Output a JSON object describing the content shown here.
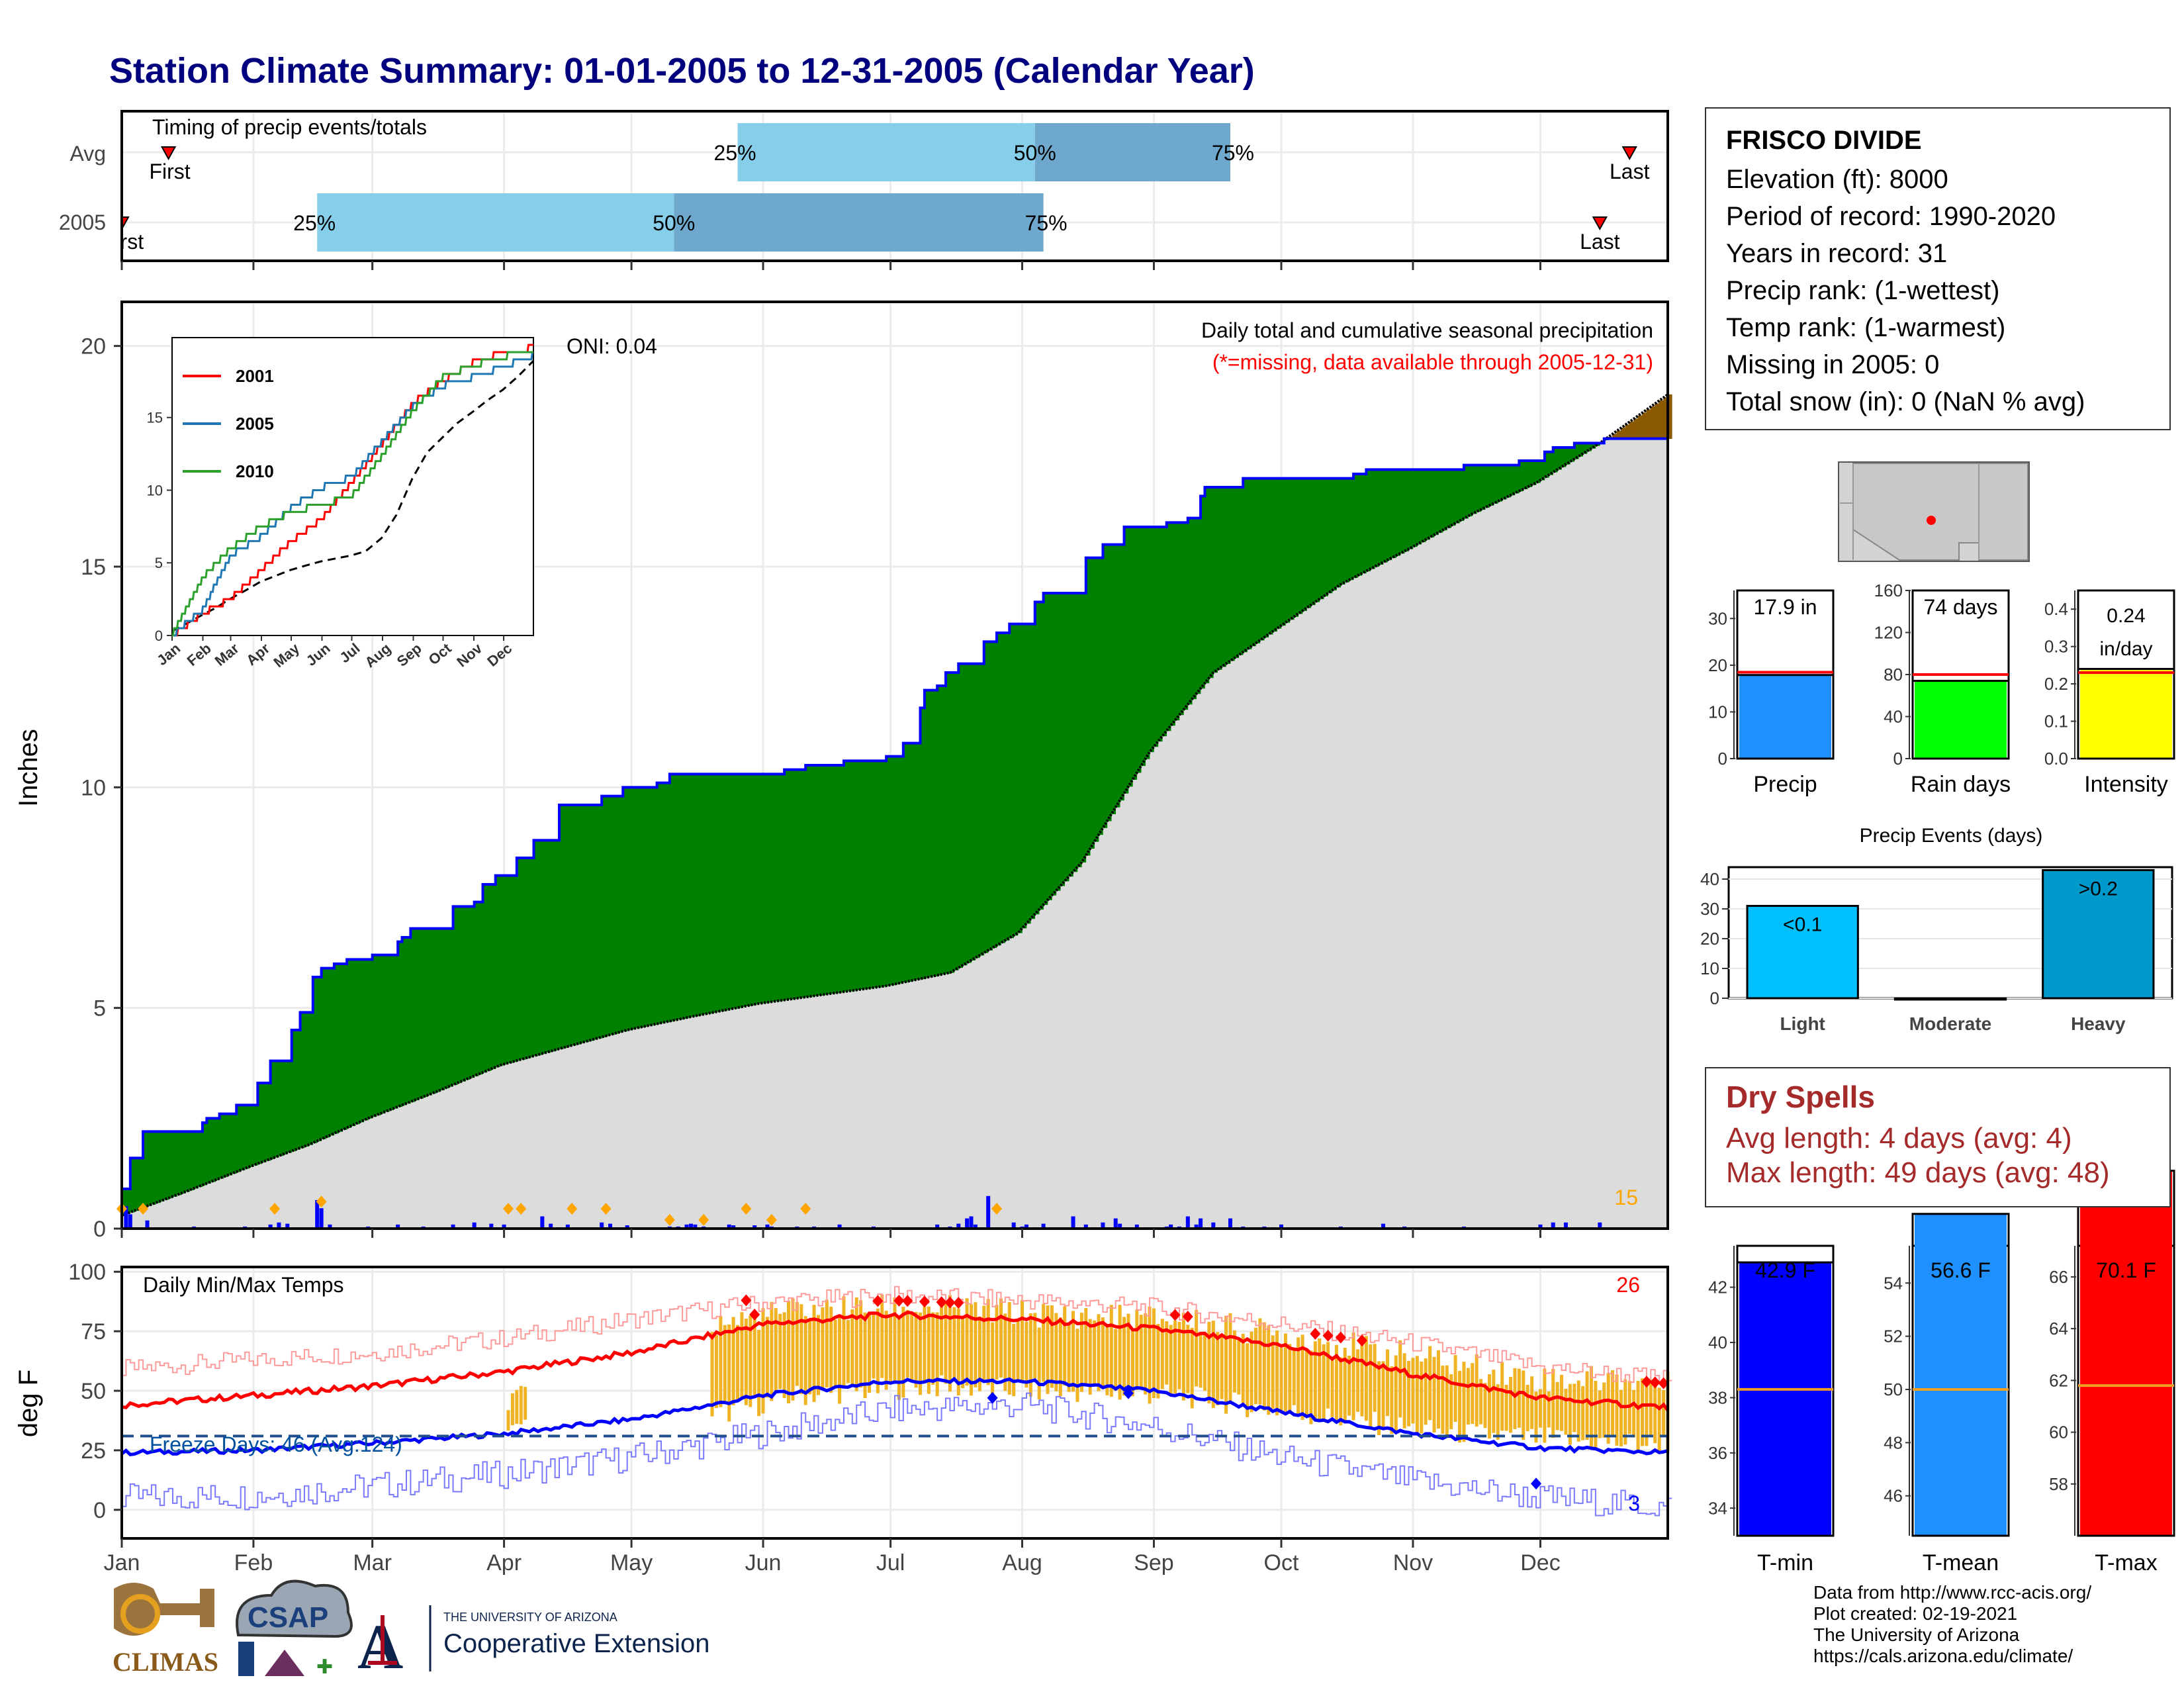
{
  "page_title": "Station Climate Summary: 01-01-2005 to 12-31-2005 (Calendar Year)",
  "colors": {
    "title": "#00007f",
    "wet": "#008000",
    "dry": "#8b5a00",
    "cum_line": "#0000ff",
    "climo_fill": "#dcdcdc",
    "q1": "#87ceeb",
    "q2": "#6fa8cd",
    "tmin": "#0000ff",
    "tmax": "#ff0000",
    "anom": "#f0b323"
  },
  "timing_panel": {
    "title": "Timing of precip events/totals",
    "rows": [
      {
        "label": "Avg",
        "first_label": "First",
        "last_label": "Last",
        "first_day": 12,
        "last_day": 356,
        "q25_day": 146,
        "q50_day": 216,
        "q75_day": 262,
        "q25_label": "25%",
        "q50_label": "50%",
        "q75_label": "75%"
      },
      {
        "label": "2005",
        "first_label": "First",
        "last_label": "Last",
        "first_day": 1,
        "last_day": 349,
        "q25_day": 47,
        "q50_day": 131,
        "q75_day": 218,
        "q25_label": "25%",
        "q50_label": "50%",
        "q75_label": "75%"
      }
    ]
  },
  "precip_panel": {
    "y_label": "Inches",
    "y_ticks": [
      "0",
      "5",
      "10",
      "15",
      "20"
    ],
    "header": "Daily total and cumulative seasonal precipitation",
    "missing_note": "(*=missing, data available through 2005-12-31)",
    "oni": "ONI: 0.04",
    "count_label": "15"
  },
  "inset": {
    "y_ticks": [
      "0",
      "5",
      "10",
      "15"
    ],
    "months": [
      "Jan",
      "Feb",
      "Mar",
      "Apr",
      "May",
      "Jun",
      "Jul",
      "Aug",
      "Sep",
      "Oct",
      "Nov",
      "Dec"
    ],
    "legend": [
      {
        "name": "2001",
        "color": "#ff0000"
      },
      {
        "name": "2005",
        "color": "#1f77b4"
      },
      {
        "name": "2010",
        "color": "#2ca02c"
      }
    ]
  },
  "temp_panel": {
    "y_label": "deg F",
    "title": "Daily Min/Max Temps",
    "y_ticks": [
      "0",
      "25",
      "50",
      "75",
      "100"
    ],
    "freeze_label": "Freeze Days: 46 (Avg:124)",
    "max_count": "26",
    "min_count": "3"
  },
  "months": [
    "Jan",
    "Feb",
    "Mar",
    "Apr",
    "May",
    "Jun",
    "Jul",
    "Aug",
    "Sep",
    "Oct",
    "Nov",
    "Dec"
  ],
  "station": {
    "name": "FRISCO DIVIDE",
    "lines": [
      "Elevation (ft): 8000",
      "Period of record: 1990-2020",
      "Years in record: 31",
      "Precip rank:  (1-wettest)",
      "Temp rank:  (1-warmest)",
      "Missing in 2005: 0",
      "Total snow (in): 0 (NaN % avg)"
    ]
  },
  "mini_bars": [
    {
      "label": "Precip",
      "value": 17.9,
      "avg": 18.5,
      "value_text": "17.9 in",
      "color": "#1e90ff",
      "ymax": 36,
      "ticks": [
        "0",
        "10",
        "20",
        "30"
      ],
      "tickvals": [
        0,
        10,
        20,
        30
      ]
    },
    {
      "label": "Rain days",
      "value": 74,
      "avg": 80,
      "value_text": "74 days",
      "color": "#00ff00",
      "ymax": 160,
      "ticks": [
        "0",
        "40",
        "80",
        "120",
        "160"
      ],
      "tickvals": [
        0,
        40,
        80,
        120,
        160
      ]
    },
    {
      "label": "Intensity",
      "value": 0.24,
      "avg": 0.23,
      "value_text": "0.24 in/day",
      "value_text_lines": [
        "0.24",
        "in/day"
      ],
      "color": "#ffff00",
      "ymax": 0.45,
      "ticks": [
        "0.0",
        "0.1",
        "0.2",
        "0.3",
        "0.4"
      ],
      "tickvals": [
        0,
        0.1,
        0.2,
        0.3,
        0.4
      ]
    }
  ],
  "precip_events": {
    "title": "Precip Events (days)",
    "categories": [
      "Light",
      "Moderate",
      "Heavy"
    ],
    "labels": [
      "<0.1",
      "",
      ">0.2"
    ],
    "values": [
      31,
      0,
      43
    ],
    "colors": [
      "#00bfff",
      "#00bfff",
      "#0099cc"
    ],
    "ticks": [
      "0",
      "10",
      "20",
      "30",
      "40"
    ],
    "tickvals": [
      0,
      10,
      20,
      30,
      40
    ]
  },
  "dry_spells": {
    "title": "Dry Spells",
    "avg_line": "Avg length: 4 days (avg: 4)",
    "max_line": "Max length: 49 days (avg: 48)"
  },
  "temp_bars": [
    {
      "label": "T-min",
      "value": 42.9,
      "avg": 38.3,
      "value_text": "42.9 F",
      "color": "#0000ff",
      "ymin": 33,
      "ymax": 43.5,
      "ticks": [
        "34",
        "36",
        "38",
        "40",
        "42"
      ],
      "tickvals": [
        34,
        36,
        38,
        40,
        42
      ]
    },
    {
      "label": "T-mean",
      "value": 56.6,
      "avg": 50,
      "value_text": "56.6 F",
      "color": "#1e90ff",
      "ymin": 44.5,
      "ymax": 55.4,
      "ticks": [
        "46",
        "48",
        "50",
        "52",
        "54"
      ],
      "tickvals": [
        46,
        48,
        50,
        52,
        54
      ]
    },
    {
      "label": "T-max",
      "value": 70.1,
      "avg": 61.8,
      "value_text": "70.1 F",
      "color": "#ff0000",
      "ymin": 56,
      "ymax": 67.2,
      "ticks": [
        "58",
        "60",
        "62",
        "64",
        "66"
      ],
      "tickvals": [
        58,
        60,
        62,
        64,
        66
      ]
    }
  ],
  "logos": {
    "climas": "CLIMAS",
    "csap": "CSAP",
    "ua_small": "THE UNIVERSITY OF ARIZONA",
    "ua_big": "Cooperative Extension"
  },
  "credits": [
    "Data from http://www.rcc-acis.org/",
    "Plot created: 02-19-2021",
    "The University of Arizona",
    "https://cals.arizona.edu/climate/"
  ],
  "chart_data": [
    {
      "type": "area",
      "title": "Daily total and cumulative seasonal precipitation",
      "ylabel": "Inches",
      "ylim": [
        0,
        21
      ],
      "x_unit": "day of year",
      "series": [
        {
          "name": "2005",
          "x": [
            1,
            3,
            6,
            20,
            21,
            24,
            28,
            33,
            36,
            41,
            43,
            46,
            48,
            51,
            54,
            57,
            60,
            66,
            67,
            69,
            73,
            79,
            84,
            86,
            89,
            94,
            98,
            104,
            110,
            114,
            119,
            127,
            130,
            139,
            144,
            150,
            157,
            162,
            171,
            181,
            185,
            189,
            190,
            193,
            195,
            198,
            204,
            207,
            210,
            216,
            218,
            228,
            232,
            237,
            247,
            252,
            255,
            256,
            259,
            265,
            274,
            281,
            288,
            291,
            294,
            306,
            307,
            310,
            317,
            322,
            330,
            336,
            338,
            343,
            350,
            365
          ],
          "values": [
            0.9,
            1.6,
            2.2,
            2.4,
            2.5,
            2.6,
            2.8,
            3.3,
            3.8,
            4.5,
            4.9,
            5.7,
            5.9,
            6.0,
            6.1,
            6.1,
            6.2,
            6.5,
            6.6,
            6.8,
            6.8,
            7.3,
            7.4,
            7.8,
            8.0,
            8.4,
            8.8,
            9.6,
            9.6,
            9.8,
            10.0,
            10.1,
            10.3,
            10.3,
            10.3,
            10.3,
            10.4,
            10.5,
            10.6,
            10.7,
            11.0,
            11.8,
            12.2,
            12.3,
            12.6,
            12.8,
            13.3,
            13.5,
            13.7,
            14.2,
            14.4,
            15.2,
            15.5,
            15.9,
            16.0,
            16.1,
            16.6,
            16.8,
            16.8,
            17.0,
            17.0,
            17.0,
            17.0,
            17.1,
            17.2,
            17.2,
            17.2,
            17.2,
            17.3,
            17.3,
            17.4,
            17.6,
            17.7,
            17.8,
            17.9,
            17.9
          ]
        },
        {
          "name": "Average",
          "x": [
            1,
            15,
            31,
            45,
            59,
            75,
            90,
            105,
            120,
            135,
            151,
            166,
            181,
            196,
            212,
            227,
            243,
            258,
            273,
            288,
            304,
            319,
            334,
            349,
            365
          ],
          "values": [
            0.3,
            0.8,
            1.4,
            1.9,
            2.5,
            3.1,
            3.7,
            4.1,
            4.5,
            4.8,
            5.1,
            5.3,
            5.5,
            5.8,
            6.7,
            8.3,
            10.8,
            12.6,
            13.6,
            14.6,
            15.4,
            16.2,
            16.9,
            17.8,
            18.9
          ]
        }
      ],
      "daily_precip": {
        "days": [
          2,
          3,
          7,
          18,
          30,
          36,
          38,
          40,
          47,
          48,
          50,
          59,
          66,
          72,
          79,
          84,
          88,
          91,
          100,
          102,
          106,
          114,
          116,
          120,
          130,
          132,
          134,
          135,
          136,
          138,
          144,
          145,
          150,
          153,
          154,
          160,
          164,
          170,
          178,
          190,
          193,
          196,
          198,
          200,
          201,
          202,
          205,
          211,
          213,
          214,
          218,
          225,
          228,
          232,
          235,
          236,
          240,
          247,
          248,
          250,
          252,
          254,
          255,
          258,
          262,
          265,
          270,
          274,
          288,
          298,
          303,
          317,
          335,
          338,
          341,
          349
        ],
        "values": [
          0.55,
          0.35,
          0.2,
          0.05,
          0.05,
          0.1,
          0.15,
          0.12,
          0.7,
          0.5,
          0.1,
          0.05,
          0.1,
          0.05,
          0.1,
          0.15,
          0.12,
          0.1,
          0.3,
          0.12,
          0.1,
          0.15,
          0.12,
          0.08,
          0.05,
          0.05,
          0.1,
          0.12,
          0.1,
          0.05,
          0.1,
          0.08,
          0.08,
          0.1,
          0.05,
          0.05,
          0.05,
          0.1,
          0.05,
          0.03,
          0.1,
          0.05,
          0.12,
          0.25,
          0.3,
          0.1,
          0.8,
          0.15,
          0.05,
          0.1,
          0.12,
          0.3,
          0.1,
          0.15,
          0.25,
          0.12,
          0.1,
          0.05,
          0.1,
          0.05,
          0.3,
          0.1,
          0.25,
          0.15,
          0.25,
          0.05,
          0.05,
          0.1,
          0.05,
          0.12,
          0.05,
          0.05,
          0.1,
          0.15,
          0.15,
          0.15
        ]
      },
      "heavy_days": [
        1,
        6,
        37,
        48,
        92,
        95,
        107,
        115,
        130,
        138,
        148,
        154,
        162,
        207
      ]
    },
    {
      "type": "line",
      "title": "Daily Min/Max Temps",
      "ylabel": "deg F",
      "ylim": [
        -12,
        102
      ],
      "x_unit": "day of year",
      "series": [
        {
          "name": "Avg max",
          "x": [
            1,
            32,
            60,
            91,
            121,
            152,
            182,
            213,
            244,
            274,
            305,
            335,
            365
          ],
          "values": [
            44,
            48,
            52,
            58,
            66,
            78,
            82,
            80,
            76,
            69,
            57,
            47,
            43
          ]
        },
        {
          "name": "Avg min",
          "x": [
            1,
            32,
            60,
            91,
            121,
            152,
            182,
            213,
            244,
            274,
            305,
            335,
            365
          ],
          "values": [
            24,
            25,
            28,
            32,
            38,
            48,
            54,
            54,
            50,
            41,
            32,
            26,
            24
          ]
        },
        {
          "name": "Record max",
          "x": [
            1,
            32,
            60,
            91,
            121,
            152,
            182,
            213,
            244,
            274,
            305,
            335,
            365
          ],
          "values": [
            59,
            63,
            66,
            72,
            80,
            87,
            90,
            88,
            85,
            78,
            70,
            60,
            55
          ]
        },
        {
          "name": "Record min",
          "x": [
            1,
            32,
            60,
            91,
            121,
            152,
            182,
            213,
            244,
            274,
            305,
            335,
            365
          ],
          "values": [
            5,
            6,
            10,
            15,
            22,
            32,
            42,
            44,
            35,
            22,
            12,
            5,
            1
          ]
        }
      ],
      "freeze_line": 31,
      "anomaly_ranges": {
        "x": [
          92,
          141,
          160,
          190,
          220,
          250,
          280,
          310,
          335,
          355,
          365
        ],
        "min": [
          33,
          40,
          48,
          52,
          50,
          48,
          40,
          33,
          30,
          28,
          28
        ],
        "max": [
          45,
          78,
          84,
          85,
          82,
          80,
          72,
          63,
          55,
          55,
          52
        ]
      }
    },
    {
      "type": "bar",
      "title": "Precip Events (days)",
      "categories": [
        "Light",
        "Moderate",
        "Heavy"
      ],
      "values": [
        31,
        0,
        43
      ],
      "ylim": [
        0,
        44
      ]
    },
    {
      "type": "bar",
      "categories": [
        "Precip",
        "Rain days",
        "Intensity"
      ],
      "values": [
        17.9,
        74,
        0.24
      ]
    },
    {
      "type": "bar",
      "categories": [
        "T-min",
        "T-mean",
        "T-max"
      ],
      "values": [
        42.9,
        56.6,
        70.1
      ],
      "avg": [
        38.3,
        50.0,
        61.8
      ]
    }
  ]
}
